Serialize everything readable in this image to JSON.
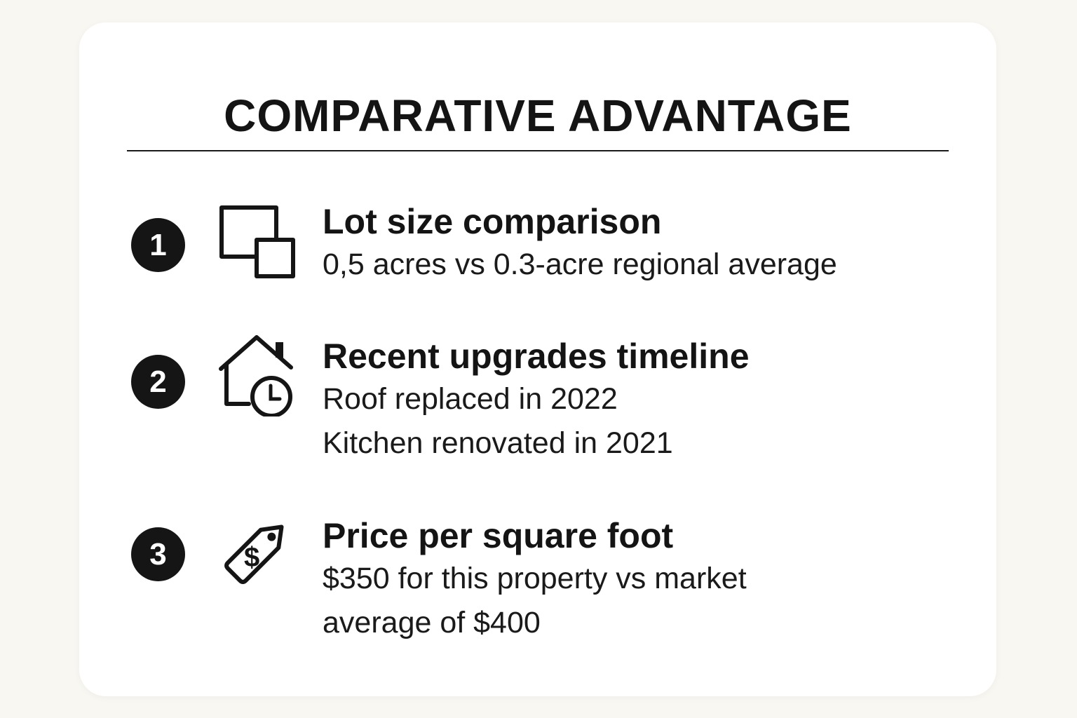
{
  "title": "COMPARATIVE ADVANTAGE",
  "items": [
    {
      "number": "1",
      "icon": "overlapping-squares-icon",
      "heading": "Lot size comparison",
      "lines": [
        "0,5 acres vs 0.3-acre regional average"
      ]
    },
    {
      "number": "2",
      "icon": "house-clock-icon",
      "heading": "Recent upgrades timeline",
      "lines": [
        "Roof replaced in 2022",
        "Kitchen renovated in 2021"
      ]
    },
    {
      "number": "3",
      "icon": "price-tag-dollar-icon",
      "heading": "Price per square foot",
      "lines": [
        "$350 for this property vs market",
        "average of $400"
      ]
    }
  ]
}
